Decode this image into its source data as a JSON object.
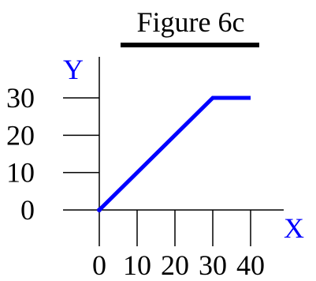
{
  "chart_data": {
    "type": "line",
    "title": "Figure 6c",
    "xlabel": "X",
    "ylabel": "Y",
    "xlim": [
      0,
      40
    ],
    "ylim": [
      0,
      30
    ],
    "x_ticks": [
      0,
      10,
      20,
      30,
      40
    ],
    "y_ticks": [
      0,
      10,
      20,
      30
    ],
    "x_tick_labels": [
      "0",
      "10",
      "20",
      "30",
      "40"
    ],
    "y_tick_labels": [
      "0",
      "10",
      "20",
      "30"
    ],
    "grid": false,
    "series": [
      {
        "x": [
          0,
          30,
          40
        ],
        "y": [
          0,
          30,
          30
        ]
      }
    ],
    "colors": {
      "line": "#0000ff",
      "axis_labels": "#0000ff",
      "axes": "#000000",
      "title_bar": "#000000"
    }
  }
}
